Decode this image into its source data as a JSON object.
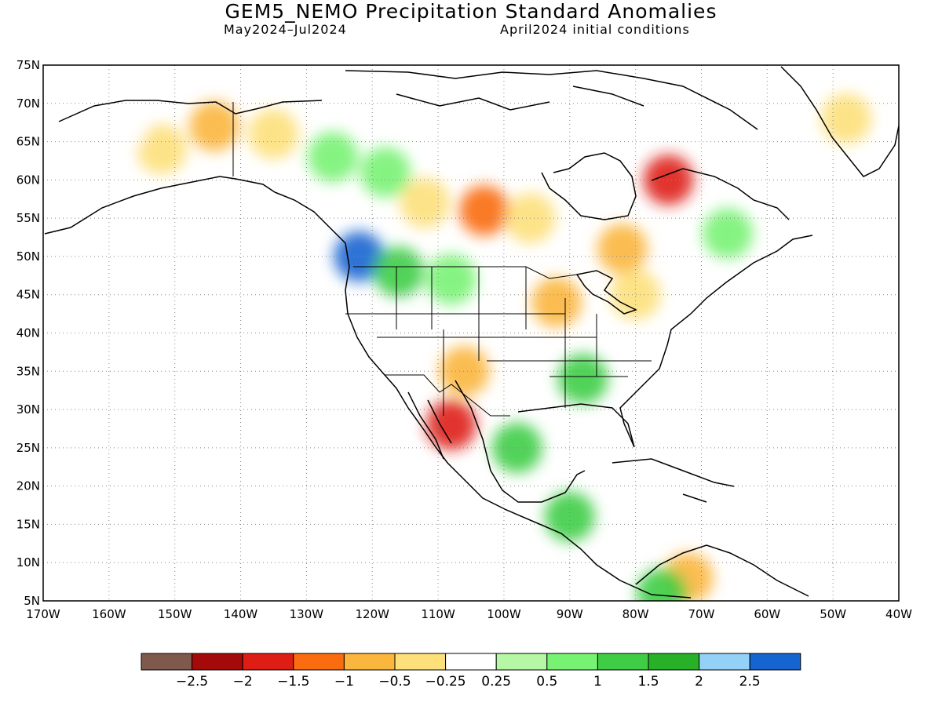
{
  "header": {
    "title": "GEM5_NEMO Precipitation Standard Anomalies",
    "period": "May2024–Jul2024",
    "init": "April2024 initial conditions"
  },
  "axes": {
    "lat_labels": [
      "75N",
      "70N",
      "65N",
      "60N",
      "55N",
      "50N",
      "45N",
      "40N",
      "35N",
      "30N",
      "25N",
      "20N",
      "15N",
      "10N",
      "5N"
    ],
    "lat_values": [
      75,
      70,
      65,
      60,
      55,
      50,
      45,
      40,
      35,
      30,
      25,
      20,
      15,
      10,
      5
    ],
    "lon_labels": [
      "170W",
      "160W",
      "150W",
      "140W",
      "130W",
      "120W",
      "110W",
      "100W",
      "90W",
      "80W",
      "70W",
      "60W",
      "50W",
      "40W"
    ],
    "lon_values": [
      -170,
      -160,
      -150,
      -140,
      -130,
      -120,
      -110,
      -100,
      -90,
      -80,
      -70,
      -60,
      -50,
      -40
    ],
    "lat_range": [
      5,
      75
    ],
    "lon_range": [
      -170,
      -40
    ]
  },
  "colorbar": {
    "colors": [
      "#7f5a4c",
      "#a50a0a",
      "#de1e14",
      "#fa6c0f",
      "#fbb63d",
      "#fde07a",
      "#ffffff",
      "#b5f7a4",
      "#78f273",
      "#3fcd45",
      "#28b029",
      "#95d1f6",
      "#1664d0"
    ],
    "labels": [
      "−2.5",
      "−2",
      "−1.5",
      "−1",
      "−0.5",
      "−0.25",
      "0.25",
      "0.5",
      "1",
      "1.5",
      "2",
      "2.5"
    ]
  },
  "anomalies": [
    {
      "lon": -144,
      "lat": 67,
      "value": -1.0
    },
    {
      "lon": -135,
      "lat": 66,
      "value": -0.5
    },
    {
      "lon": -152,
      "lat": 64,
      "value": -0.5
    },
    {
      "lon": -158,
      "lat": 67,
      "value": -0.25
    },
    {
      "lon": -126,
      "lat": 63,
      "value": 0.5
    },
    {
      "lon": -118,
      "lat": 61,
      "value": 0.5
    },
    {
      "lon": -122,
      "lat": 50,
      "value": 2.5
    },
    {
      "lon": -116,
      "lat": 48,
      "value": 1.0
    },
    {
      "lon": -108,
      "lat": 47,
      "value": 0.5
    },
    {
      "lon": -112,
      "lat": 57,
      "value": -0.5
    },
    {
      "lon": -103,
      "lat": 56,
      "value": -1.5
    },
    {
      "lon": -96,
      "lat": 55,
      "value": -0.5
    },
    {
      "lon": -82,
      "lat": 51,
      "value": -1.0
    },
    {
      "lon": -92,
      "lat": 44,
      "value": -1.0
    },
    {
      "lon": -80,
      "lat": 45,
      "value": -0.5
    },
    {
      "lon": -75,
      "lat": 60,
      "value": -2.0
    },
    {
      "lon": -66,
      "lat": 53,
      "value": 0.5
    },
    {
      "lon": -48,
      "lat": 68,
      "value": -0.5
    },
    {
      "lon": -106,
      "lat": 35,
      "value": -1.0
    },
    {
      "lon": -108,
      "lat": 28,
      "value": -2.0
    },
    {
      "lon": -98,
      "lat": 25,
      "value": 1.0
    },
    {
      "lon": -88,
      "lat": 34,
      "value": 1.0
    },
    {
      "lon": -90,
      "lat": 16,
      "value": 1.0
    },
    {
      "lon": -72,
      "lat": 8,
      "value": -1.0
    },
    {
      "lon": -76,
      "lat": 6,
      "value": 1.0
    }
  ]
}
